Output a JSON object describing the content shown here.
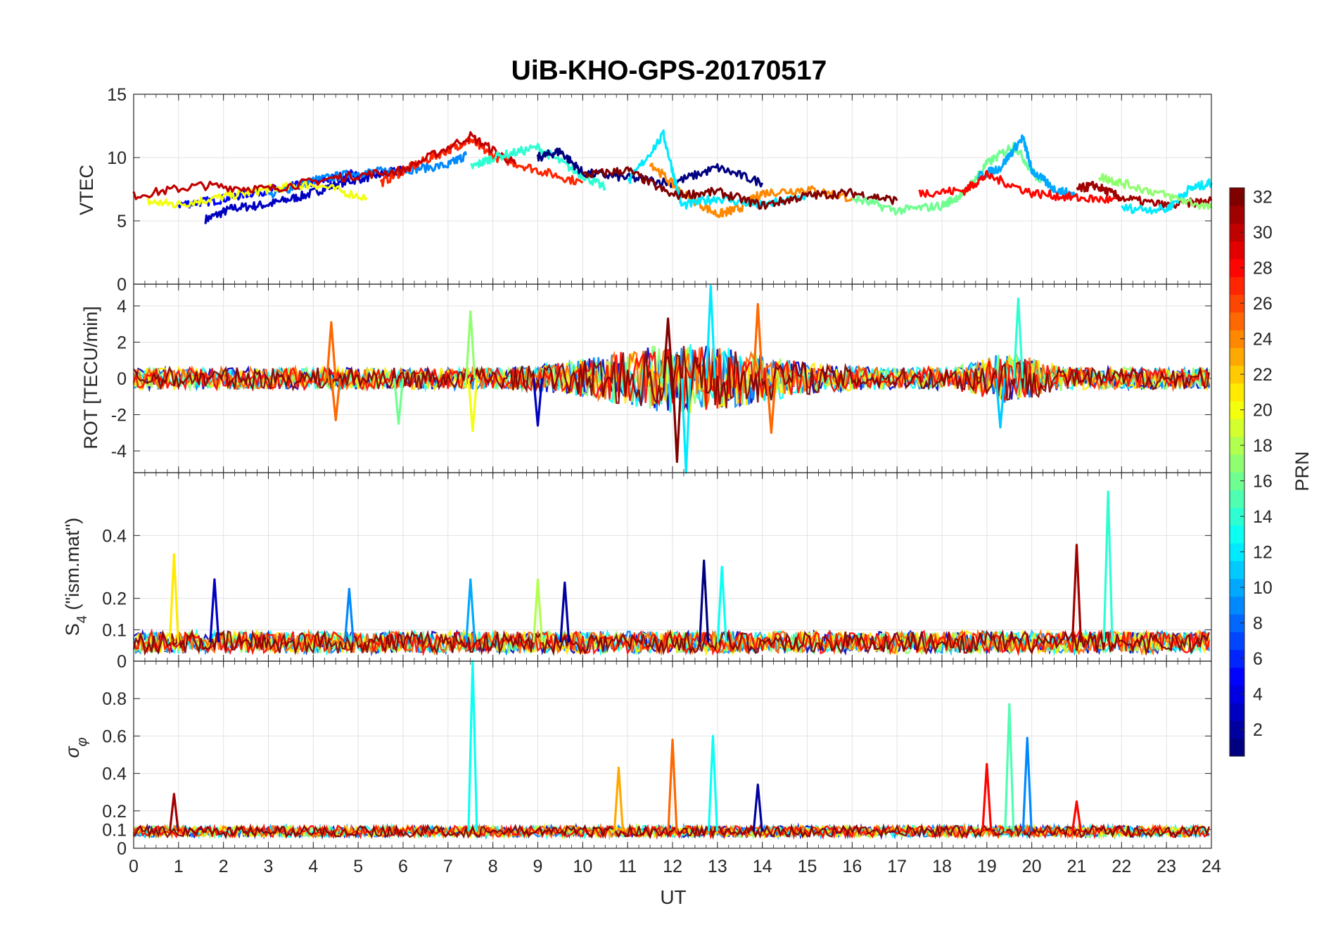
{
  "chart_data": {
    "type": "line",
    "title": "UiB-KHO-GPS-20170517",
    "xlabel": "UT",
    "xlim": [
      0,
      24
    ],
    "xticks": [
      "0",
      "1",
      "2",
      "3",
      "4",
      "5",
      "6",
      "7",
      "8",
      "9",
      "10",
      "11",
      "12",
      "13",
      "14",
      "15",
      "16",
      "17",
      "18",
      "19",
      "20",
      "21",
      "22",
      "23",
      "24"
    ],
    "grid": true,
    "colorbar": {
      "label": "PRN",
      "range": [
        1,
        32
      ],
      "colormap": "jet",
      "ticks": [
        "2",
        "4",
        "6",
        "8",
        "10",
        "12",
        "14",
        "16",
        "18",
        "20",
        "22",
        "24",
        "26",
        "28",
        "30",
        "32"
      ]
    },
    "panels": [
      {
        "id": "vtec",
        "ylabel": "VTEC",
        "ylim": [
          0,
          15
        ],
        "yticks": [
          "0",
          "5",
          "10",
          "15"
        ],
        "series": [
          {
            "prn": 3,
            "x": [
              1.6,
              2.2,
              3.0,
              3.8,
              4.6,
              5.4,
              6.0
            ],
            "y": [
              5.1,
              6.0,
              6.3,
              7.0,
              8.0,
              8.6,
              9.0
            ]
          },
          {
            "prn": 5,
            "x": [
              1.0,
              1.8,
              2.6,
              3.4,
              4.2,
              5.0
            ],
            "y": [
              6.3,
              6.6,
              7.2,
              7.6,
              8.2,
              8.8
            ]
          },
          {
            "prn": 9,
            "x": [
              3.0,
              4.0,
              5.0,
              6.0,
              7.0,
              7.4
            ],
            "y": [
              7.0,
              8.2,
              8.8,
              9.0,
              9.4,
              10.2
            ]
          },
          {
            "prn": 20,
            "x": [
              0.3,
              1.0,
              2.0,
              3.0,
              4.0,
              5.2
            ],
            "y": [
              6.5,
              6.3,
              6.9,
              7.5,
              7.9,
              6.8
            ]
          },
          {
            "prn": 27,
            "x": [
              5.5,
              6.2,
              7.0,
              7.5,
              8.0,
              9.0,
              10.0
            ],
            "y": [
              8.0,
              9.3,
              10.6,
              11.4,
              10.1,
              9.0,
              8.0
            ]
          },
          {
            "prn": 30,
            "x": [
              0,
              1.5,
              3.0,
              4.5,
              6.0,
              7.5,
              8.5
            ],
            "y": [
              7.0,
              7.8,
              7.5,
              8.4,
              9.0,
              11.7,
              9.5
            ]
          },
          {
            "prn": 14,
            "x": [
              7.5,
              8.0,
              9.0,
              9.8,
              10.5
            ],
            "y": [
              9.2,
              10.0,
              10.8,
              9.0,
              7.6
            ]
          },
          {
            "prn": 1,
            "x": [
              9.0,
              9.5,
              10.0,
              11.0,
              12.0,
              13.0,
              14.0
            ],
            "y": [
              10.0,
              10.5,
              8.8,
              8.4,
              8.0,
              9.2,
              8.0
            ]
          },
          {
            "prn": 24,
            "x": [
              11.5,
              12.2,
              13.0,
              13.5,
              14.0,
              15.0,
              16.0
            ],
            "y": [
              9.6,
              7.2,
              5.5,
              6.0,
              7.2,
              7.5,
              6.8
            ]
          },
          {
            "prn": 12,
            "x": [
              11.0,
              11.8,
              12.2,
              13.0,
              14.0,
              15.0
            ],
            "y": [
              8.0,
              11.8,
              6.2,
              6.8,
              6.2,
              7.0
            ]
          },
          {
            "prn": 32,
            "x": [
              10.0,
              11.0,
              12.0,
              13.0,
              14.0,
              15.0,
              16.0,
              17.0
            ],
            "y": [
              8.6,
              9.0,
              7.0,
              7.3,
              6.2,
              7.0,
              7.2,
              6.6
            ]
          },
          {
            "prn": 16,
            "x": [
              16.0,
              17.0,
              18.0,
              18.5,
              19.0,
              19.6,
              20.2
            ],
            "y": [
              6.8,
              5.8,
              6.2,
              7.2,
              9.5,
              11.0,
              8.0
            ]
          },
          {
            "prn": 10,
            "x": [
              18.8,
              19.3,
              19.8,
              20.0,
              20.5,
              21.0
            ],
            "y": [
              8.5,
              9.2,
              11.6,
              9.0,
              7.5,
              7.0
            ]
          },
          {
            "prn": 28,
            "x": [
              17.5,
              18.5,
              19.0,
              20.0,
              21.0,
              22.0
            ],
            "y": [
              7.2,
              7.4,
              8.6,
              7.2,
              6.8,
              6.6
            ]
          },
          {
            "prn": 31,
            "x": [
              21.0,
              21.4,
              22.0,
              23.0,
              24.0
            ],
            "y": [
              7.5,
              7.8,
              6.8,
              6.2,
              6.6
            ]
          },
          {
            "prn": 12,
            "x": [
              22.0,
              23.0,
              23.5,
              24.0
            ],
            "y": [
              6.0,
              5.9,
              7.5,
              8.0
            ]
          },
          {
            "prn": 17,
            "x": [
              21.5,
              22.0,
              23.0,
              24.0
            ],
            "y": [
              8.5,
              8.0,
              7.0,
              6.0
            ]
          }
        ]
      },
      {
        "id": "rot",
        "ylabel": "ROT [TECU/min]",
        "ylim": [
          -5.2,
          5.2
        ],
        "yticks": [
          "-4",
          "-2",
          "0",
          "2",
          "4"
        ],
        "spikes": [
          {
            "prn": 25,
            "x": 4.4,
            "y": 3.1
          },
          {
            "prn": 25,
            "x": 4.5,
            "y": -2.3
          },
          {
            "prn": 16,
            "x": 5.9,
            "y": -2.5
          },
          {
            "prn": 17,
            "x": 7.5,
            "y": 3.7
          },
          {
            "prn": 20,
            "x": 7.55,
            "y": -2.9
          },
          {
            "prn": 3,
            "x": 9.0,
            "y": -2.6
          },
          {
            "prn": 32,
            "x": 11.9,
            "y": 3.3
          },
          {
            "prn": 32,
            "x": 12.1,
            "y": -4.6
          },
          {
            "prn": 12,
            "x": 12.85,
            "y": 5.1
          },
          {
            "prn": 12,
            "x": 12.3,
            "y": -5.2
          },
          {
            "prn": 25,
            "x": 13.9,
            "y": 4.1
          },
          {
            "prn": 25,
            "x": 14.2,
            "y": -3.0
          },
          {
            "prn": 14,
            "x": 19.7,
            "y": 4.4
          },
          {
            "prn": 11,
            "x": 19.3,
            "y": -2.7
          }
        ]
      },
      {
        "id": "s4",
        "ylabel": "S4 (\"ism.mat\")",
        "ylim": [
          0,
          0.6
        ],
        "yticks": [
          "0",
          "0.1",
          "0.2",
          "0.4"
        ],
        "spikes": [
          {
            "prn": 21,
            "x": 0.9,
            "y": 0.34
          },
          {
            "prn": 3,
            "x": 1.8,
            "y": 0.26
          },
          {
            "prn": 9,
            "x": 4.8,
            "y": 0.23
          },
          {
            "prn": 10,
            "x": 7.5,
            "y": 0.26
          },
          {
            "prn": 18,
            "x": 9.0,
            "y": 0.26
          },
          {
            "prn": 2,
            "x": 9.6,
            "y": 0.25
          },
          {
            "prn": 1,
            "x": 12.7,
            "y": 0.32
          },
          {
            "prn": 13,
            "x": 13.1,
            "y": 0.3
          },
          {
            "prn": 31,
            "x": 21.0,
            "y": 0.37
          },
          {
            "prn": 14,
            "x": 21.7,
            "y": 0.54
          }
        ]
      },
      {
        "id": "sigma",
        "ylabel": "σφ",
        "ylim": [
          0,
          1
        ],
        "yticks": [
          "0",
          "0.1",
          "0.2",
          "0.4",
          "0.6",
          "0.8"
        ],
        "spikes": [
          {
            "prn": 13,
            "x": 7.55,
            "y": 1.0
          },
          {
            "prn": 25,
            "x": 12.0,
            "y": 0.58
          },
          {
            "prn": 13,
            "x": 12.9,
            "y": 0.6
          },
          {
            "prn": 15,
            "x": 19.5,
            "y": 0.77
          },
          {
            "prn": 9,
            "x": 19.9,
            "y": 0.59
          },
          {
            "prn": 28,
            "x": 19.0,
            "y": 0.45
          },
          {
            "prn": 23,
            "x": 10.8,
            "y": 0.43
          },
          {
            "prn": 2,
            "x": 13.9,
            "y": 0.34
          },
          {
            "prn": 31,
            "x": 0.9,
            "y": 0.29
          },
          {
            "prn": 28,
            "x": 21.0,
            "y": 0.25
          }
        ]
      }
    ]
  }
}
